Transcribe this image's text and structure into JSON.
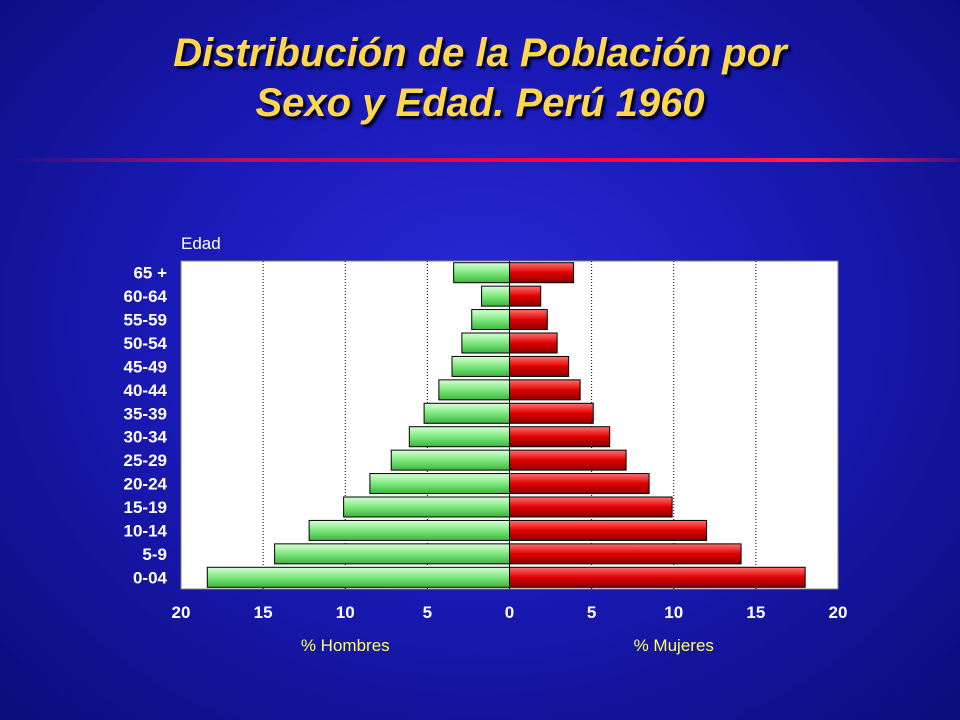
{
  "title": {
    "line1": "Distribución de la Población por",
    "line2": "Sexo y Edad.  Perú 1960"
  },
  "colors": {
    "male_bar": "#7ee87e",
    "female_bar": "#e00000",
    "title": "#ffd84a",
    "background": "#1a1ab8"
  },
  "chart_data": {
    "type": "bar",
    "orientation": "horizontal",
    "subtype": "population pyramid",
    "ylabel": "Edad",
    "categories": [
      "65 +",
      "60-64",
      "55-59",
      "50-54",
      "45-49",
      "40-44",
      "35-39",
      "30-34",
      "25-29",
      "20-24",
      "15-19",
      "10-14",
      "5-9",
      "0-04"
    ],
    "series": [
      {
        "name": "% Hombres",
        "side": "left",
        "values": [
          3.4,
          1.7,
          2.3,
          2.9,
          3.5,
          4.3,
          5.2,
          6.1,
          7.2,
          8.5,
          10.1,
          12.2,
          14.3,
          18.4
        ]
      },
      {
        "name": "% Mujeres",
        "side": "right",
        "values": [
          3.9,
          1.9,
          2.3,
          2.9,
          3.6,
          4.3,
          5.1,
          6.1,
          7.1,
          8.5,
          9.9,
          12.0,
          14.1,
          18.0
        ]
      }
    ],
    "xlim": [
      -20,
      20
    ],
    "xticks": [
      "20",
      "15",
      "10",
      "5",
      "0",
      "5",
      "10",
      "15",
      "20"
    ],
    "grid": "vertical dotted",
    "legend": "below axis"
  }
}
